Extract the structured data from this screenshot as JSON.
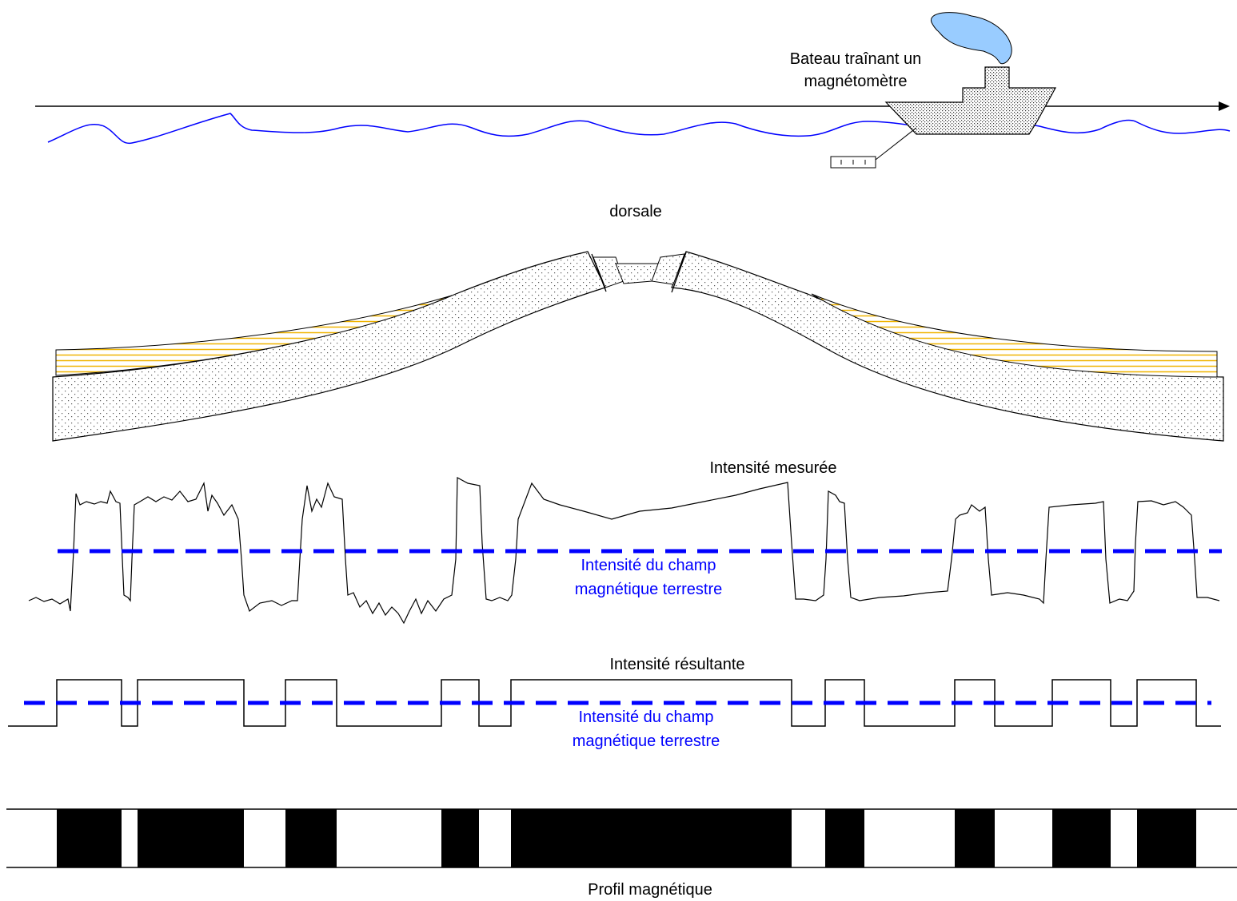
{
  "labels": {
    "ship_line1": "Bateau traînant un",
    "ship_line2": "magnétomètre",
    "ridge": "dorsale",
    "measured": "Intensité mesurée",
    "field_line1": "Intensité du champ",
    "field_line2": "magnétique terrestre",
    "resultant": "Intensité résultante",
    "field2_line1": "Intensité du champ",
    "field2_line2": "magnétique terrestre",
    "profile": "Profil magnétique"
  },
  "colors": {
    "sea": "#0000ff",
    "reference_dashes": "#0000ff",
    "smoke": "#99ccff",
    "sediment_stripes": "#f0b400",
    "stipple": "#555555",
    "normal_band": "#000000"
  },
  "icons": [
    "ship-icon",
    "smoke-icon",
    "magnetometer-icon",
    "arrow-head-icon"
  ],
  "magnetic_profile": {
    "normal_segments": [
      {
        "from": 0.046,
        "to": 0.098
      },
      {
        "from": 0.111,
        "to": 0.197
      },
      {
        "from": 0.231,
        "to": 0.272
      },
      {
        "from": 0.357,
        "to": 0.387
      },
      {
        "from": 0.413,
        "to": 0.64
      },
      {
        "from": 0.667,
        "to": 0.699
      },
      {
        "from": 0.772,
        "to": 0.804
      },
      {
        "from": 0.851,
        "to": 0.898
      },
      {
        "from": 0.919,
        "to": 0.967
      }
    ]
  }
}
